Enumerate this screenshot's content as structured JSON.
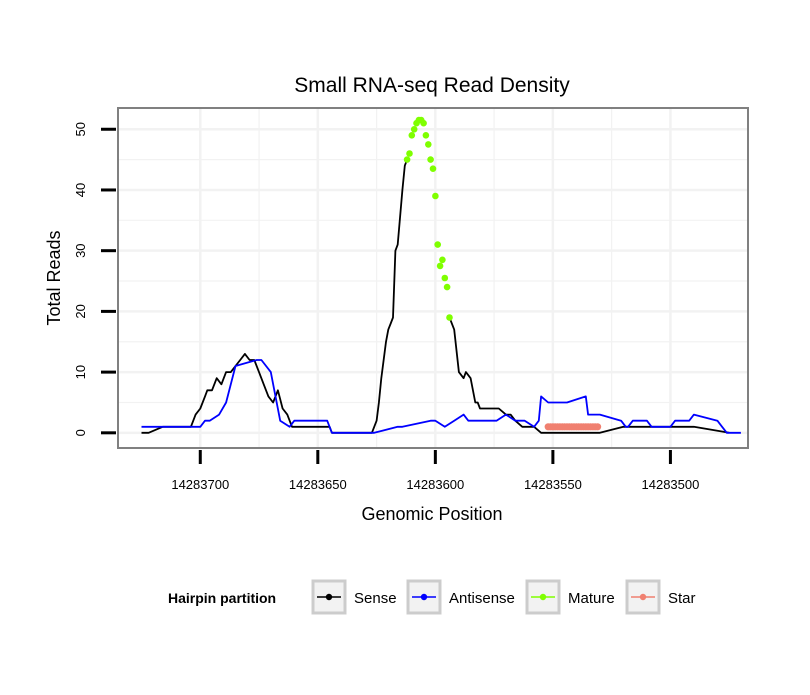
{
  "colors": {
    "sense": "#000000",
    "antisense": "#0000ff",
    "mature": "#7fff00",
    "star": "#f08070",
    "panel_border": "#808080",
    "grid": "#f2f2f2"
  },
  "chart_data": {
    "type": "line",
    "title": "Small RNA-seq Read Density",
    "xlabel": "Genomic Position",
    "ylabel": "Total Reads",
    "xlim": [
      14283735,
      14283467
    ],
    "ylim": [
      -2.5,
      53.5
    ],
    "x_reversed": true,
    "x_ticks": [
      14283700,
      14283650,
      14283600,
      14283550,
      14283500
    ],
    "x_tick_labels": [
      "14283700",
      "14283650",
      "14283600",
      "14283550",
      "14283500"
    ],
    "y_ticks": [
      0,
      10,
      20,
      30,
      40,
      50
    ],
    "y_tick_labels": [
      "0",
      "10",
      "20",
      "30",
      "40",
      "50"
    ],
    "legend": {
      "title": "Hairpin partition",
      "position": "bottom",
      "entries": [
        "Sense",
        "Antisense",
        "Mature",
        "Star"
      ]
    },
    "series": [
      {
        "name": "Sense",
        "style": "line",
        "x": [
          14283725,
          14283722,
          14283716,
          14283714,
          14283712,
          14283710,
          14283708,
          14283706,
          14283704,
          14283702,
          14283700,
          14283698,
          14283697,
          14283695,
          14283693,
          14283691,
          14283689,
          14283687,
          14283685,
          14283683,
          14283681,
          14283679,
          14283677,
          14283675,
          14283673,
          14283671,
          14283669,
          14283667,
          14283665,
          14283663,
          14283661,
          14283656,
          14283645,
          14283644,
          14283627,
          14283625,
          14283624,
          14283623,
          14283621,
          14283620,
          14283619,
          14283618,
          14283617,
          14283616,
          14283614,
          14283613,
          14283612
        ],
        "values": [
          0,
          0,
          1,
          1,
          1,
          1,
          1,
          1,
          1,
          3,
          4,
          6,
          7,
          7,
          9,
          8,
          10,
          10,
          11,
          12,
          13,
          12,
          12,
          10,
          8,
          6,
          5,
          7,
          4,
          3,
          1,
          1,
          1,
          0,
          0,
          2,
          5,
          9,
          15,
          17,
          18,
          19,
          30,
          31,
          40,
          44,
          45
        ]
      },
      {
        "name": "Sense",
        "style": "line",
        "x": [
          14283594,
          14283592,
          14283590,
          14283588,
          14283587,
          14283585,
          14283583,
          14283582,
          14283581,
          14283580,
          14283579,
          14283577,
          14283575,
          14283573,
          14283570,
          14283568,
          14283566,
          14283563,
          14283560,
          14283558,
          14283555,
          14283553,
          14283550,
          14283530,
          14283520,
          14283500,
          14283490,
          14283475
        ],
        "values": [
          19,
          17,
          10,
          9,
          10,
          9,
          5,
          5,
          4,
          4,
          4,
          4,
          4,
          4,
          3,
          3,
          2,
          1,
          1,
          1,
          0,
          0,
          0,
          0,
          1,
          1,
          1,
          0
        ]
      },
      {
        "name": "Antisense",
        "style": "line",
        "x": [
          14283725,
          14283722,
          14283719,
          14283710,
          14283705,
          14283700,
          14283698,
          14283696,
          14283692,
          14283689,
          14283685,
          14283676,
          14283674,
          14283670,
          14283668,
          14283666,
          14283662,
          14283660,
          14283646,
          14283644,
          14283626,
          14283616,
          14283614,
          14283602,
          14283600,
          14283596,
          14283592,
          14283588,
          14283586,
          14283584,
          14283582,
          14283578,
          14283574,
          14283570,
          14283566,
          14283562,
          14283558,
          14283556,
          14283555,
          14283552,
          14283548,
          14283545,
          14283544,
          14283536,
          14283535,
          14283533,
          14283530,
          14283521,
          14283519,
          14283518,
          14283516,
          14283510,
          14283508,
          14283500,
          14283498,
          14283492,
          14283490,
          14283480,
          14283478,
          14283476,
          14283470
        ],
        "values": [
          1,
          1,
          1,
          1,
          1,
          1,
          2,
          2,
          3,
          5,
          11,
          12,
          12,
          10,
          6,
          2,
          1,
          2,
          2,
          0,
          0,
          1,
          1,
          2,
          2,
          1,
          2,
          3,
          2,
          2,
          2,
          2,
          2,
          3,
          2,
          2,
          1,
          2,
          6,
          5,
          5,
          5,
          5,
          6,
          3,
          3,
          3,
          2,
          1,
          1,
          2,
          2,
          1,
          1,
          2,
          2,
          3,
          2,
          1,
          0,
          0
        ]
      },
      {
        "name": "Mature",
        "style": "points",
        "x": [
          14283612,
          14283611,
          14283610,
          14283609,
          14283608,
          14283607,
          14283606,
          14283605,
          14283604,
          14283603,
          14283602,
          14283601,
          14283600,
          14283599,
          14283598,
          14283597,
          14283596,
          14283595,
          14283594
        ],
        "values": [
          45,
          46,
          49,
          50,
          51,
          51.5,
          51.5,
          51,
          49,
          47.5,
          45,
          43.5,
          39,
          31,
          27.5,
          28.5,
          25.5,
          24,
          19
        ]
      },
      {
        "name": "Star",
        "style": "points",
        "x": [
          14283552,
          14283551,
          14283550,
          14283549,
          14283548,
          14283547,
          14283546,
          14283545,
          14283544,
          14283543,
          14283542,
          14283541,
          14283540,
          14283539,
          14283538,
          14283537,
          14283536,
          14283535,
          14283534,
          14283533,
          14283532,
          14283531
        ],
        "values": [
          1,
          1,
          1,
          1,
          1,
          1,
          1,
          1,
          1,
          1,
          1,
          1,
          1,
          1,
          1,
          1,
          1,
          1,
          1,
          1,
          1,
          1
        ]
      }
    ]
  }
}
